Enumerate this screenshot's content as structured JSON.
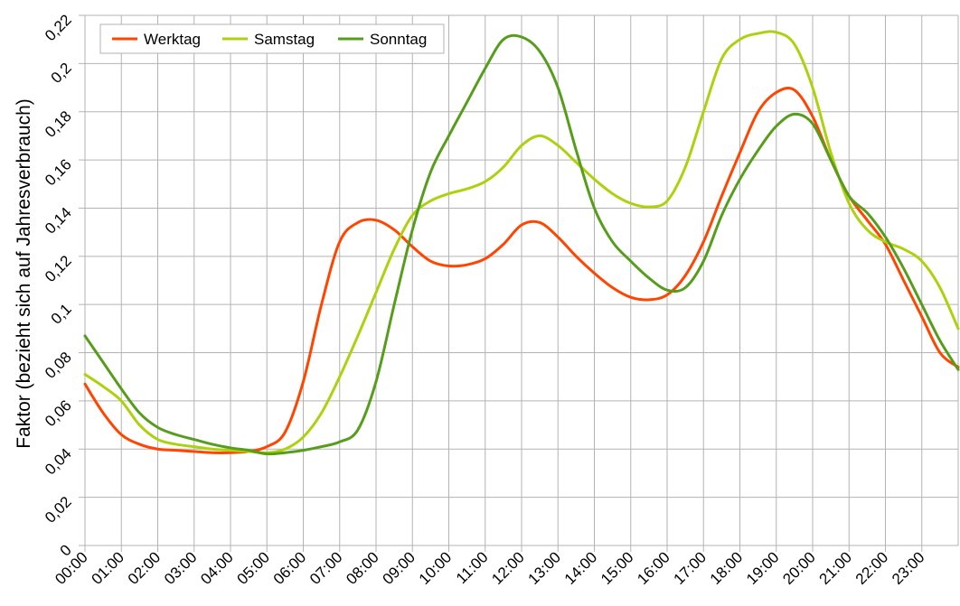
{
  "chart_data": {
    "type": "line",
    "title": "",
    "xlabel": "",
    "ylabel": "Faktor (bezieht sich auf Jahresverbrauch)",
    "x_tick_labels": [
      "00:00",
      "01:00",
      "02:00",
      "03:00",
      "04:00",
      "05:00",
      "06:00",
      "07:00",
      "08:00",
      "09:00",
      "10:00",
      "11:00",
      "12:00",
      "13:00",
      "14:00",
      "15:00",
      "16:00",
      "17:00",
      "18:00",
      "19:00",
      "20:00",
      "21:00",
      "22:00",
      "23:00"
    ],
    "y_tick_labels": [
      "0",
      "0,02",
      "0,04",
      "0,06",
      "0,08",
      "0,1",
      "0,12",
      "0,14",
      "0,16",
      "0,18",
      "0,2",
      "0,22"
    ],
    "y_ticks": [
      0,
      0.02,
      0.04,
      0.06,
      0.08,
      0.1,
      0.12,
      0.14,
      0.16,
      0.18,
      0.2,
      0.22
    ],
    "xlim": [
      0,
      24
    ],
    "ylim": [
      0,
      0.22
    ],
    "grid": true,
    "legend_position": "top-left",
    "x_hours": [
      0,
      0.5,
      1,
      1.5,
      2,
      2.5,
      3,
      3.5,
      4,
      4.5,
      5,
      5.5,
      6,
      6.5,
      7,
      7.5,
      8,
      8.5,
      9,
      9.5,
      10,
      10.5,
      11,
      11.5,
      12,
      12.5,
      13,
      13.5,
      14,
      14.5,
      15,
      15.5,
      16,
      16.5,
      17,
      17.5,
      18,
      18.5,
      19,
      19.5,
      20,
      20.5,
      21,
      21.5,
      22,
      22.5,
      23,
      23.5,
      24
    ],
    "series": [
      {
        "name": "Werktag",
        "color": "#ff4500",
        "values": [
          0.067,
          0.055,
          0.046,
          0.042,
          0.04,
          0.0395,
          0.039,
          0.0385,
          0.0385,
          0.039,
          0.041,
          0.047,
          0.068,
          0.1,
          0.126,
          0.134,
          0.135,
          0.131,
          0.124,
          0.118,
          0.116,
          0.1165,
          0.119,
          0.125,
          0.133,
          0.134,
          0.128,
          0.12,
          0.113,
          0.107,
          0.103,
          0.102,
          0.104,
          0.112,
          0.126,
          0.145,
          0.163,
          0.18,
          0.188,
          0.189,
          0.178,
          0.16,
          0.145,
          0.135,
          0.125,
          0.11,
          0.095,
          0.08,
          0.074
        ]
      },
      {
        "name": "Samstag",
        "color": "#aed10f",
        "values": [
          0.071,
          0.066,
          0.06,
          0.05,
          0.044,
          0.042,
          0.041,
          0.04,
          0.0395,
          0.039,
          0.0385,
          0.04,
          0.045,
          0.055,
          0.07,
          0.087,
          0.105,
          0.123,
          0.137,
          0.143,
          0.146,
          0.148,
          0.151,
          0.157,
          0.166,
          0.17,
          0.166,
          0.159,
          0.152,
          0.146,
          0.142,
          0.1405,
          0.143,
          0.157,
          0.18,
          0.202,
          0.21,
          0.2125,
          0.213,
          0.208,
          0.19,
          0.163,
          0.142,
          0.131,
          0.126,
          0.123,
          0.118,
          0.107,
          0.09
        ]
      },
      {
        "name": "Sonntag",
        "color": "#579d1c",
        "values": [
          0.087,
          0.076,
          0.065,
          0.055,
          0.049,
          0.046,
          0.044,
          0.042,
          0.0405,
          0.0395,
          0.038,
          0.0385,
          0.0395,
          0.041,
          0.043,
          0.048,
          0.068,
          0.1,
          0.131,
          0.155,
          0.17,
          0.184,
          0.198,
          0.21,
          0.211,
          0.205,
          0.19,
          0.164,
          0.14,
          0.126,
          0.118,
          0.111,
          0.106,
          0.107,
          0.118,
          0.137,
          0.152,
          0.164,
          0.174,
          0.179,
          0.175,
          0.16,
          0.145,
          0.138,
          0.128,
          0.115,
          0.1,
          0.085,
          0.073
        ]
      }
    ]
  }
}
